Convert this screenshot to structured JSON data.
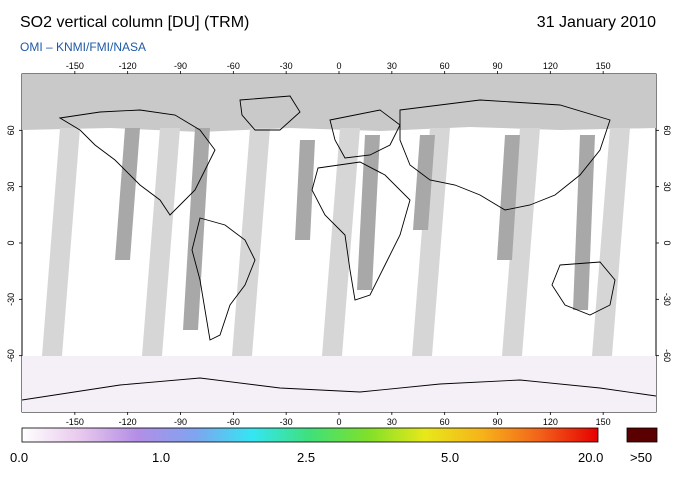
{
  "header": {
    "title": "SO2 vertical column [DU] (TRM)",
    "date": "31 January 2010",
    "subtitle": "OMI  –  KNMI/FMI/NASA"
  },
  "map": {
    "lon_ticks": [
      "-150",
      "-120",
      "-90",
      "-60",
      "-30",
      "0",
      "30",
      "60",
      "90",
      "120",
      "150"
    ],
    "lat_ticks": [
      "60",
      "30",
      "0",
      "-30",
      "-60"
    ],
    "colors": {
      "background": "#ffffff",
      "orbit_gap_light": "#d3d3d3",
      "orbit_gap_dark": "#a8a8a8",
      "polar_night": "#c9c9c9",
      "coastline": "#000000"
    }
  },
  "colorbar": {
    "labels": [
      "0.0",
      "1.0",
      "2.5",
      "5.0",
      "20.0"
    ],
    "overflow_label": ">50",
    "overflow_color": "#5a0000",
    "gradient": [
      "#ffffff",
      "#e9c9ee",
      "#b38ee6",
      "#7fa4f0",
      "#34e6f2",
      "#3fe07a",
      "#7fe02a",
      "#e8e81a",
      "#f7b21a",
      "#f2611a",
      "#e60000"
    ]
  }
}
